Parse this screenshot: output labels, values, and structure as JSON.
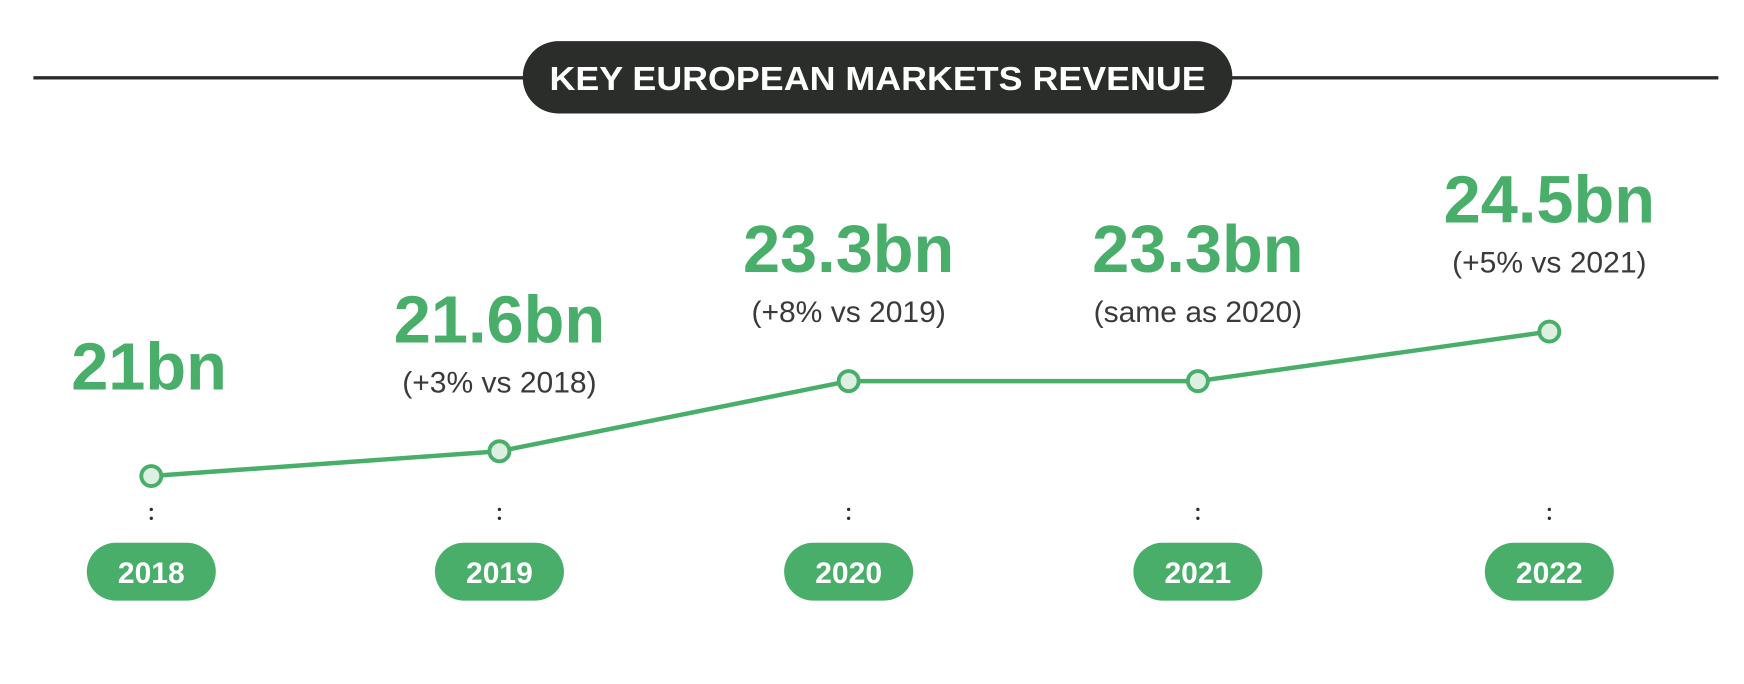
{
  "colors": {
    "accent": "#48ae6a",
    "title_bg": "#2b2d2b",
    "point_fill": "#dcefe0",
    "dots": "#2b2d2b"
  },
  "chart_data": {
    "type": "line",
    "title": "KEY EUROPEAN MARKETS REVENUE",
    "categories": [
      "2018",
      "2019",
      "2020",
      "2021",
      "2022"
    ],
    "values": [
      21,
      21.6,
      23.3,
      23.3,
      24.5
    ],
    "unit": "bn",
    "data_labels": [
      "21bn",
      "21.6bn",
      "23.3bn",
      "23.3bn",
      "24.5bn"
    ],
    "annotations": [
      "",
      "(+3% vs 2018)",
      "(+8% vs 2019)",
      "(same as 2020)",
      "(+5% vs 2021)"
    ],
    "grid": false,
    "legend": "none"
  }
}
